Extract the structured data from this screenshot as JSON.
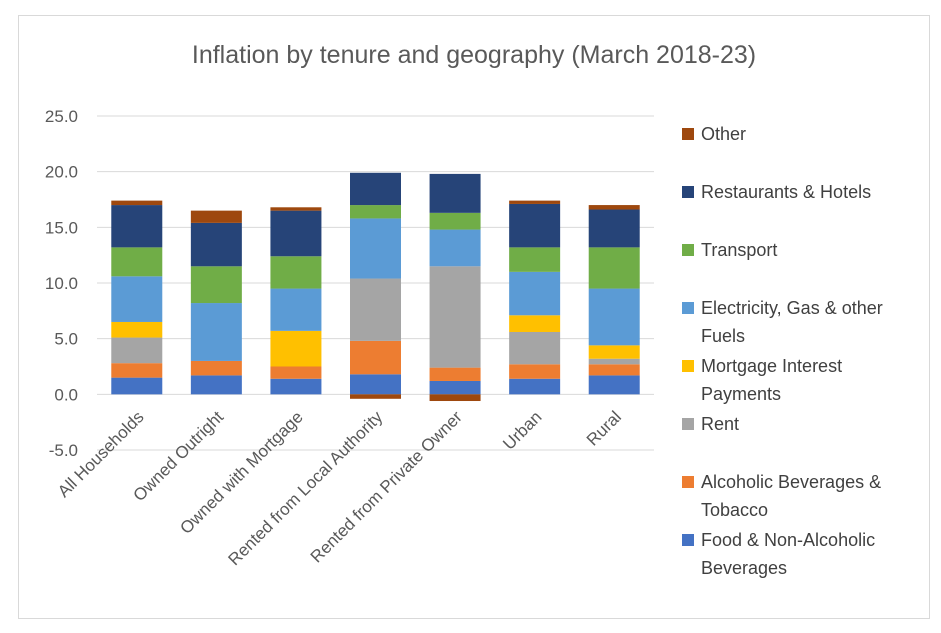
{
  "chart_data": {
    "type": "bar",
    "stacked": true,
    "title": "Inflation by tenure and geography (March 2018-23)",
    "xlabel": "",
    "ylabel": "",
    "ylim": [
      -5,
      25
    ],
    "yticks": [
      "-5.0",
      "0.0",
      "5.0",
      "10.0",
      "15.0",
      "20.0",
      "25.0"
    ],
    "grid": true,
    "legend_position": "right",
    "categories": [
      "All Households",
      "Owned Outright",
      "Owned with Mortgage",
      "Rented from Local Authority",
      "Rented from Private Owner",
      "Urban",
      "Rural"
    ],
    "series": [
      {
        "name": "Food & Non-Alcoholic Beverages",
        "color": "#4472c4",
        "values": [
          1.5,
          1.7,
          1.4,
          1.8,
          1.2,
          1.4,
          1.7
        ]
      },
      {
        "name": "Alcoholic Beverages & Tobacco",
        "color": "#ed7d31",
        "values": [
          1.3,
          1.3,
          1.1,
          3.0,
          1.2,
          1.3,
          1.0
        ]
      },
      {
        "name": "Rent",
        "color": "#a5a5a5",
        "values": [
          2.3,
          0.0,
          0.0,
          5.6,
          9.1,
          2.9,
          0.5
        ]
      },
      {
        "name": "Mortgage Interest Payments",
        "color": "#ffc000",
        "values": [
          1.4,
          0.0,
          3.2,
          0.0,
          0.0,
          1.5,
          1.2
        ]
      },
      {
        "name": "Electricity, Gas & other Fuels",
        "color": "#5b9bd5",
        "values": [
          4.1,
          5.2,
          3.8,
          5.4,
          3.3,
          3.9,
          5.1
        ]
      },
      {
        "name": "Transport",
        "color": "#70ad47",
        "values": [
          2.6,
          3.3,
          2.9,
          1.2,
          1.5,
          2.2,
          3.7
        ]
      },
      {
        "name": "Restaurants & Hotels",
        "color": "#264478",
        "values": [
          3.8,
          3.9,
          4.1,
          2.9,
          3.5,
          3.9,
          3.4
        ]
      },
      {
        "name": "Other",
        "color": "#9e480e",
        "values": [
          0.4,
          1.1,
          0.3,
          -0.4,
          -0.6,
          0.3,
          0.4
        ]
      }
    ]
  }
}
